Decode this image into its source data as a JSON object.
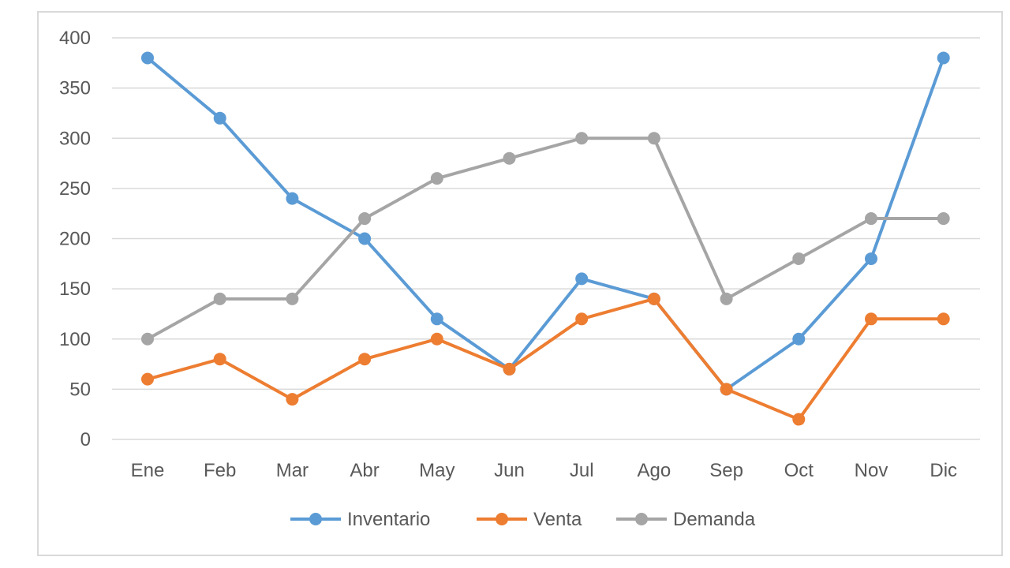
{
  "chart_data": {
    "type": "line",
    "title": "",
    "xlabel": "",
    "ylabel": "",
    "categories": [
      "Ene",
      "Feb",
      "Mar",
      "Abr",
      "May",
      "Jun",
      "Jul",
      "Ago",
      "Sep",
      "Oct",
      "Nov",
      "Dic"
    ],
    "ylim": [
      0,
      400
    ],
    "yticks": [
      0,
      50,
      100,
      150,
      200,
      250,
      300,
      350,
      400
    ],
    "ytick_labels": [
      "0",
      "50",
      "100",
      "150",
      "200",
      "250",
      "300",
      "350",
      "400"
    ],
    "grid": true,
    "legend_position": "bottom",
    "series": [
      {
        "name": "Inventario",
        "color": "#5b9bd5",
        "values": [
          380,
          320,
          240,
          200,
          120,
          70,
          160,
          140,
          50,
          100,
          180,
          380
        ]
      },
      {
        "name": "Venta",
        "color": "#ed7d31",
        "values": [
          60,
          80,
          40,
          80,
          100,
          70,
          120,
          140,
          50,
          20,
          120,
          120
        ]
      },
      {
        "name": "Demanda",
        "color": "#a5a5a5",
        "values": [
          100,
          140,
          140,
          220,
          260,
          280,
          300,
          300,
          140,
          180,
          220,
          220
        ]
      }
    ]
  }
}
